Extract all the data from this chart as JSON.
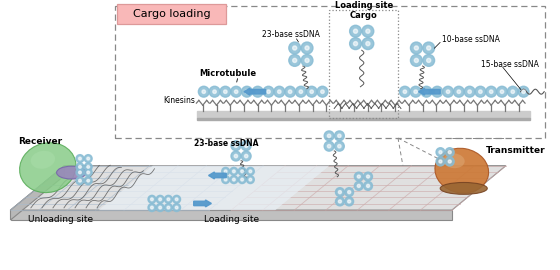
{
  "fig_width": 5.6,
  "fig_height": 2.7,
  "dpi": 100,
  "bg_color": "#ffffff",
  "cargo_loading_label": "Cargo loading",
  "cargo_loading_bg": "#f9b8b8",
  "labels": {
    "microtubule": "Microtubule",
    "kinesins": "Kinesins",
    "loading_site_top": "Loading site",
    "cargo": "Cargo",
    "dna23_top": "23-base ssDNA",
    "dna10": "10-base ssDNA",
    "dna15": "15-base ssDNA",
    "dna23_bottom": "23-base ssDNA",
    "receiver": "Receiver",
    "transmitter": "Transmitter",
    "unloading_site": "Unloading site",
    "loading_site_bottom": "Loading site"
  },
  "colors": {
    "blue_bead": "#88bcd4",
    "blue_bead_dark": "#5a9ab8",
    "blue_arrow": "#5599cc",
    "kinesin": "#777777",
    "platform_top": "#e8e8e8",
    "platform_side": "#c8c8c8",
    "platform_front": "#b0b0b0",
    "grid_blue": "#aabbcc",
    "grid_red": "#ccaaaa",
    "center_light": "#e8eef4",
    "green_recv": "#88cc88",
    "green_recv_dark": "#55aa55",
    "purple_cyl": "#9988bb",
    "orange_trans": "#cc7733",
    "orange_trans_dark": "#aa5522",
    "dna_strand": "#555555",
    "dashed_box": "#888888",
    "white": "#ffffff",
    "black": "#000000",
    "gray_bar": "#cccccc"
  }
}
